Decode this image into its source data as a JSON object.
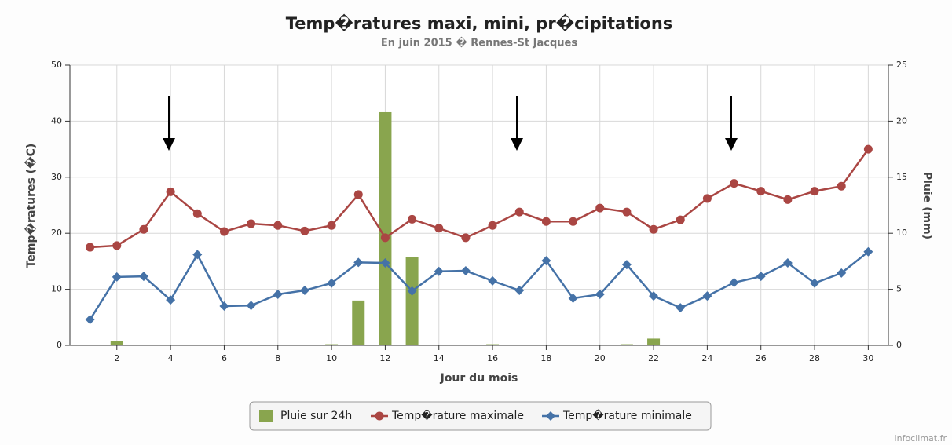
{
  "chart_data": {
    "type": "line",
    "title": "Temp�ratures maxi, mini, pr�cipitations",
    "subtitle": "En juin 2015 � Rennes-St Jacques",
    "x_label": "Jour du mois",
    "y_label": "Temp�ratures (�C)",
    "y2_label": "Pluie (mm)",
    "credit": "infoclimat.fr",
    "x": [
      1,
      2,
      3,
      4,
      5,
      6,
      7,
      8,
      9,
      10,
      11,
      12,
      13,
      14,
      15,
      16,
      17,
      18,
      19,
      20,
      21,
      22,
      23,
      24,
      25,
      26,
      27,
      28,
      29,
      30
    ],
    "xlim": [
      0.25,
      30.75
    ],
    "xticks": [
      2,
      4,
      6,
      8,
      10,
      12,
      14,
      16,
      18,
      20,
      22,
      24,
      26,
      28,
      30
    ],
    "ylim": [
      0,
      50
    ],
    "yticks": [
      0,
      10,
      20,
      30,
      40,
      50
    ],
    "y2lim": [
      0,
      25
    ],
    "y2ticks": [
      0,
      5,
      10,
      15,
      20,
      25
    ],
    "grid": true,
    "legend": "bottom",
    "series": [
      {
        "name": "Pluie sur 24h",
        "type": "bar",
        "axis": "y2",
        "color": "#89a54e",
        "values": [
          0,
          0.4,
          0,
          0,
          0,
          0,
          0,
          0,
          0,
          0.1,
          4.0,
          20.8,
          7.9,
          0,
          0,
          0.1,
          0,
          0,
          0,
          0,
          0.1,
          0.6,
          0,
          0,
          0,
          0,
          0,
          0,
          0,
          0
        ]
      },
      {
        "name": "Temp�rature maximale",
        "type": "line",
        "marker": "circle",
        "color": "#aa4643",
        "values": [
          17.5,
          17.8,
          20.7,
          27.4,
          23.5,
          20.3,
          21.7,
          21.4,
          20.4,
          21.4,
          26.9,
          19.2,
          22.5,
          20.9,
          19.2,
          21.4,
          23.8,
          22.1,
          22.1,
          24.5,
          23.8,
          20.7,
          22.4,
          26.2,
          28.9,
          27.5,
          26.0,
          27.5,
          28.4,
          35.0
        ]
      },
      {
        "name": "Temp�rature minimale",
        "type": "line",
        "marker": "diamond",
        "color": "#4572a7",
        "values": [
          4.6,
          12.2,
          12.3,
          8.1,
          16.2,
          7.0,
          7.1,
          9.1,
          9.8,
          11.1,
          14.8,
          14.7,
          9.7,
          13.2,
          13.3,
          11.5,
          9.8,
          15.1,
          8.4,
          9.1,
          14.4,
          8.8,
          6.7,
          8.8,
          11.2,
          12.3,
          14.7,
          11.1,
          12.9,
          16.7
        ]
      }
    ]
  }
}
